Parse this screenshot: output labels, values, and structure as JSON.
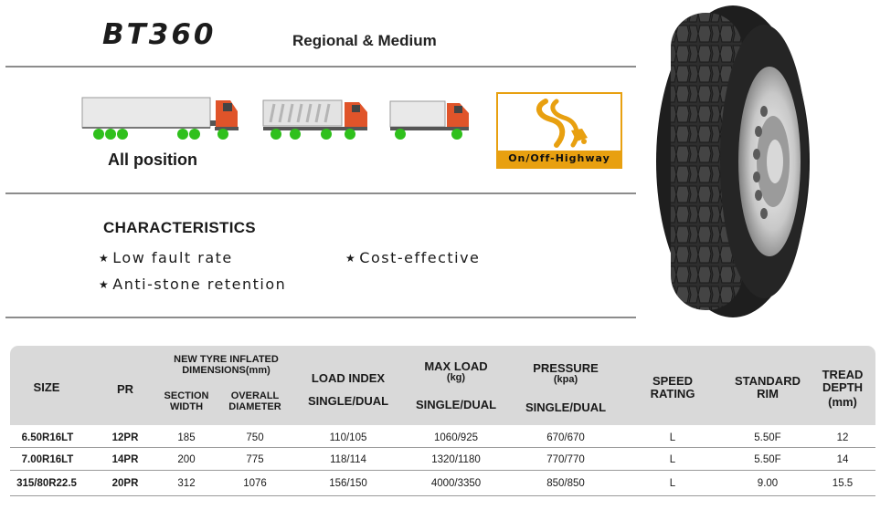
{
  "header": {
    "model": "BT360",
    "subtitle": "Regional & Medium"
  },
  "usage": {
    "all_position": "All position",
    "road_type": "On/Off-Highway"
  },
  "characteristics": {
    "title": "CHARACTERISTICS",
    "features": [
      "Low fault rate",
      "Cost-effective",
      "Anti-stone retention"
    ],
    "bullet": "★"
  },
  "table": {
    "headers": {
      "size": "SIZE",
      "pr": "PR",
      "new_tyre_dims": "NEW TYRE INFLATED DIMENSIONS(mm)",
      "section_width": "SECTION WIDTH",
      "overall_diameter": "OVERALL DIAMETER",
      "load_index": "LOAD INDEX",
      "load_index_sub": "SINGLE/DUAL",
      "max_load": "MAX LOAD",
      "max_load_unit": "(kg)",
      "max_load_sub": "SINGLE/DUAL",
      "pressure": "PRESSURE",
      "pressure_unit": "(kpa)",
      "pressure_sub": "SINGLE/DUAL",
      "speed_rating": "SPEED RATING",
      "standard_rim": "STANDARD RIM",
      "tread_depth": "TREAD DEPTH",
      "tread_depth_unit": "(mm)"
    },
    "rows": [
      {
        "size": "6.50R16LT",
        "pr": "12PR",
        "section_width": "185",
        "overall_diameter": "750",
        "load_index": "110/105",
        "max_load": "1060/925",
        "pressure": "670/670",
        "speed": "L",
        "rim": "5.50F",
        "tread": "12"
      },
      {
        "size": "7.00R16LT",
        "pr": "14PR",
        "section_width": "200",
        "overall_diameter": "775",
        "load_index": "118/114",
        "max_load": "1320/1180",
        "pressure": "770/770",
        "speed": "L",
        "rim": "5.50F",
        "tread": "14"
      },
      {
        "size": "315/80R22.5",
        "pr": "20PR",
        "section_width": "312",
        "overall_diameter": "1076",
        "load_index": "156/150",
        "max_load": "4000/3350",
        "pressure": "850/850",
        "speed": "L",
        "rim": "9.00",
        "tread": "15.5"
      }
    ]
  },
  "colors": {
    "accent_orange": "#e8a010",
    "truck_cab": "#e0542a",
    "wheel_green": "#2fc01c",
    "table_header_bg": "#d9d9d9"
  }
}
